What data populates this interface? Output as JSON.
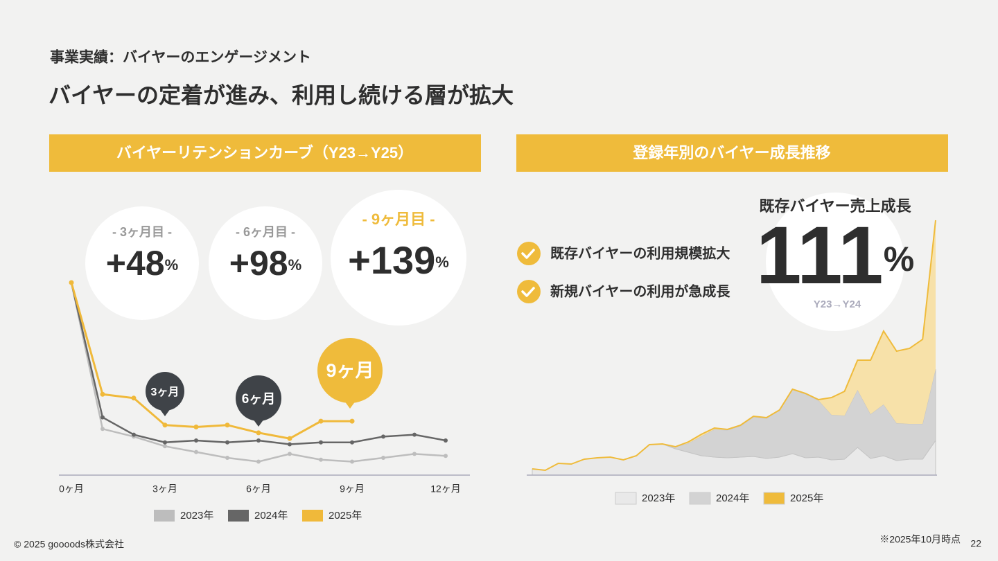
{
  "header": {
    "section": "事業実績：バイヤーのエンゲージメント",
    "title": "バイヤーの定着が進み、利用し続ける層が拡大"
  },
  "chart_data": [
    {
      "type": "line",
      "title": "バイヤーリテンションカーブ（Y23→Y25）",
      "categories": [
        "0ヶ月",
        null,
        null,
        "3ヶ月",
        null,
        null,
        "6ヶ月",
        null,
        null,
        "9ヶ月",
        null,
        null,
        "12ヶ月"
      ],
      "series": [
        {
          "name": "2023年",
          "color": "#bdbdbd",
          "values": [
            100,
            24,
            20,
            15,
            12,
            9,
            7,
            11,
            8,
            7,
            9,
            11,
            10
          ]
        },
        {
          "name": "2024年",
          "color": "#666666",
          "values": [
            100,
            30,
            21,
            17,
            18,
            17,
            18,
            16,
            17,
            17,
            20,
            21,
            18
          ]
        },
        {
          "name": "2025年",
          "color": "#f0b93a",
          "values": [
            100,
            42,
            40,
            26,
            25,
            26,
            22,
            19,
            28,
            28,
            null,
            null,
            null
          ]
        }
      ],
      "ylim": [
        0,
        100
      ],
      "legend": "bottom",
      "stats": [
        {
          "label": "- 3ヶ月目 -",
          "value": "+48",
          "unit": "%"
        },
        {
          "label": "- 6ヶ月目 -",
          "value": "+98",
          "unit": "%"
        },
        {
          "label": "- 9ヶ月目 -",
          "value": "+139",
          "unit": "%"
        }
      ],
      "callouts": [
        "3ヶ月",
        "6ヶ月",
        "9ヶ月"
      ]
    },
    {
      "type": "area",
      "stacked": true,
      "title": "登録年別のバイヤー成長推移",
      "series": [
        {
          "name": "2023年",
          "color": "#e9e9e9",
          "values": [
            9,
            7,
            17,
            16,
            23,
            25,
            26,
            22,
            28,
            44,
            45,
            38,
            33,
            28,
            26,
            25,
            26,
            27,
            24,
            26,
            31,
            25,
            26,
            22,
            23,
            40,
            24,
            28,
            21,
            23,
            23,
            50
          ]
        },
        {
          "name": "2024年",
          "color": "#d3d3d3",
          "values": [
            0,
            0,
            0,
            0,
            0,
            0,
            0,
            0,
            0,
            0,
            0,
            3,
            13,
            28,
            40,
            40,
            45,
            57,
            58,
            68,
            93,
            92,
            82,
            65,
            63,
            83,
            64,
            74,
            54,
            51,
            51,
            103
          ]
        },
        {
          "name": "2025年",
          "color": "#f7e1a9",
          "values": [
            0,
            0,
            0,
            0,
            0,
            0,
            0,
            0,
            0,
            0,
            0,
            0,
            2,
            3,
            2,
            1,
            1,
            1,
            1,
            0,
            0,
            1,
            1,
            25,
            35,
            43,
            78,
            106,
            104,
            109,
            122,
            215
          ]
        }
      ],
      "line_color": "#efbb3b",
      "ylim": [
        0,
        370
      ],
      "legend": "bottom",
      "highlights": [
        "既存バイヤーの利用規模拡大",
        "新規バイヤーの利用が急成長"
      ],
      "kpi": {
        "label": "既存バイヤー売上成長",
        "value": "111",
        "unit": "%",
        "period": "Y23→Y24"
      }
    }
  ],
  "footer": {
    "copyright": "© 2025 goooods株式会社",
    "note": "※2025年10月時点",
    "page": "22"
  }
}
